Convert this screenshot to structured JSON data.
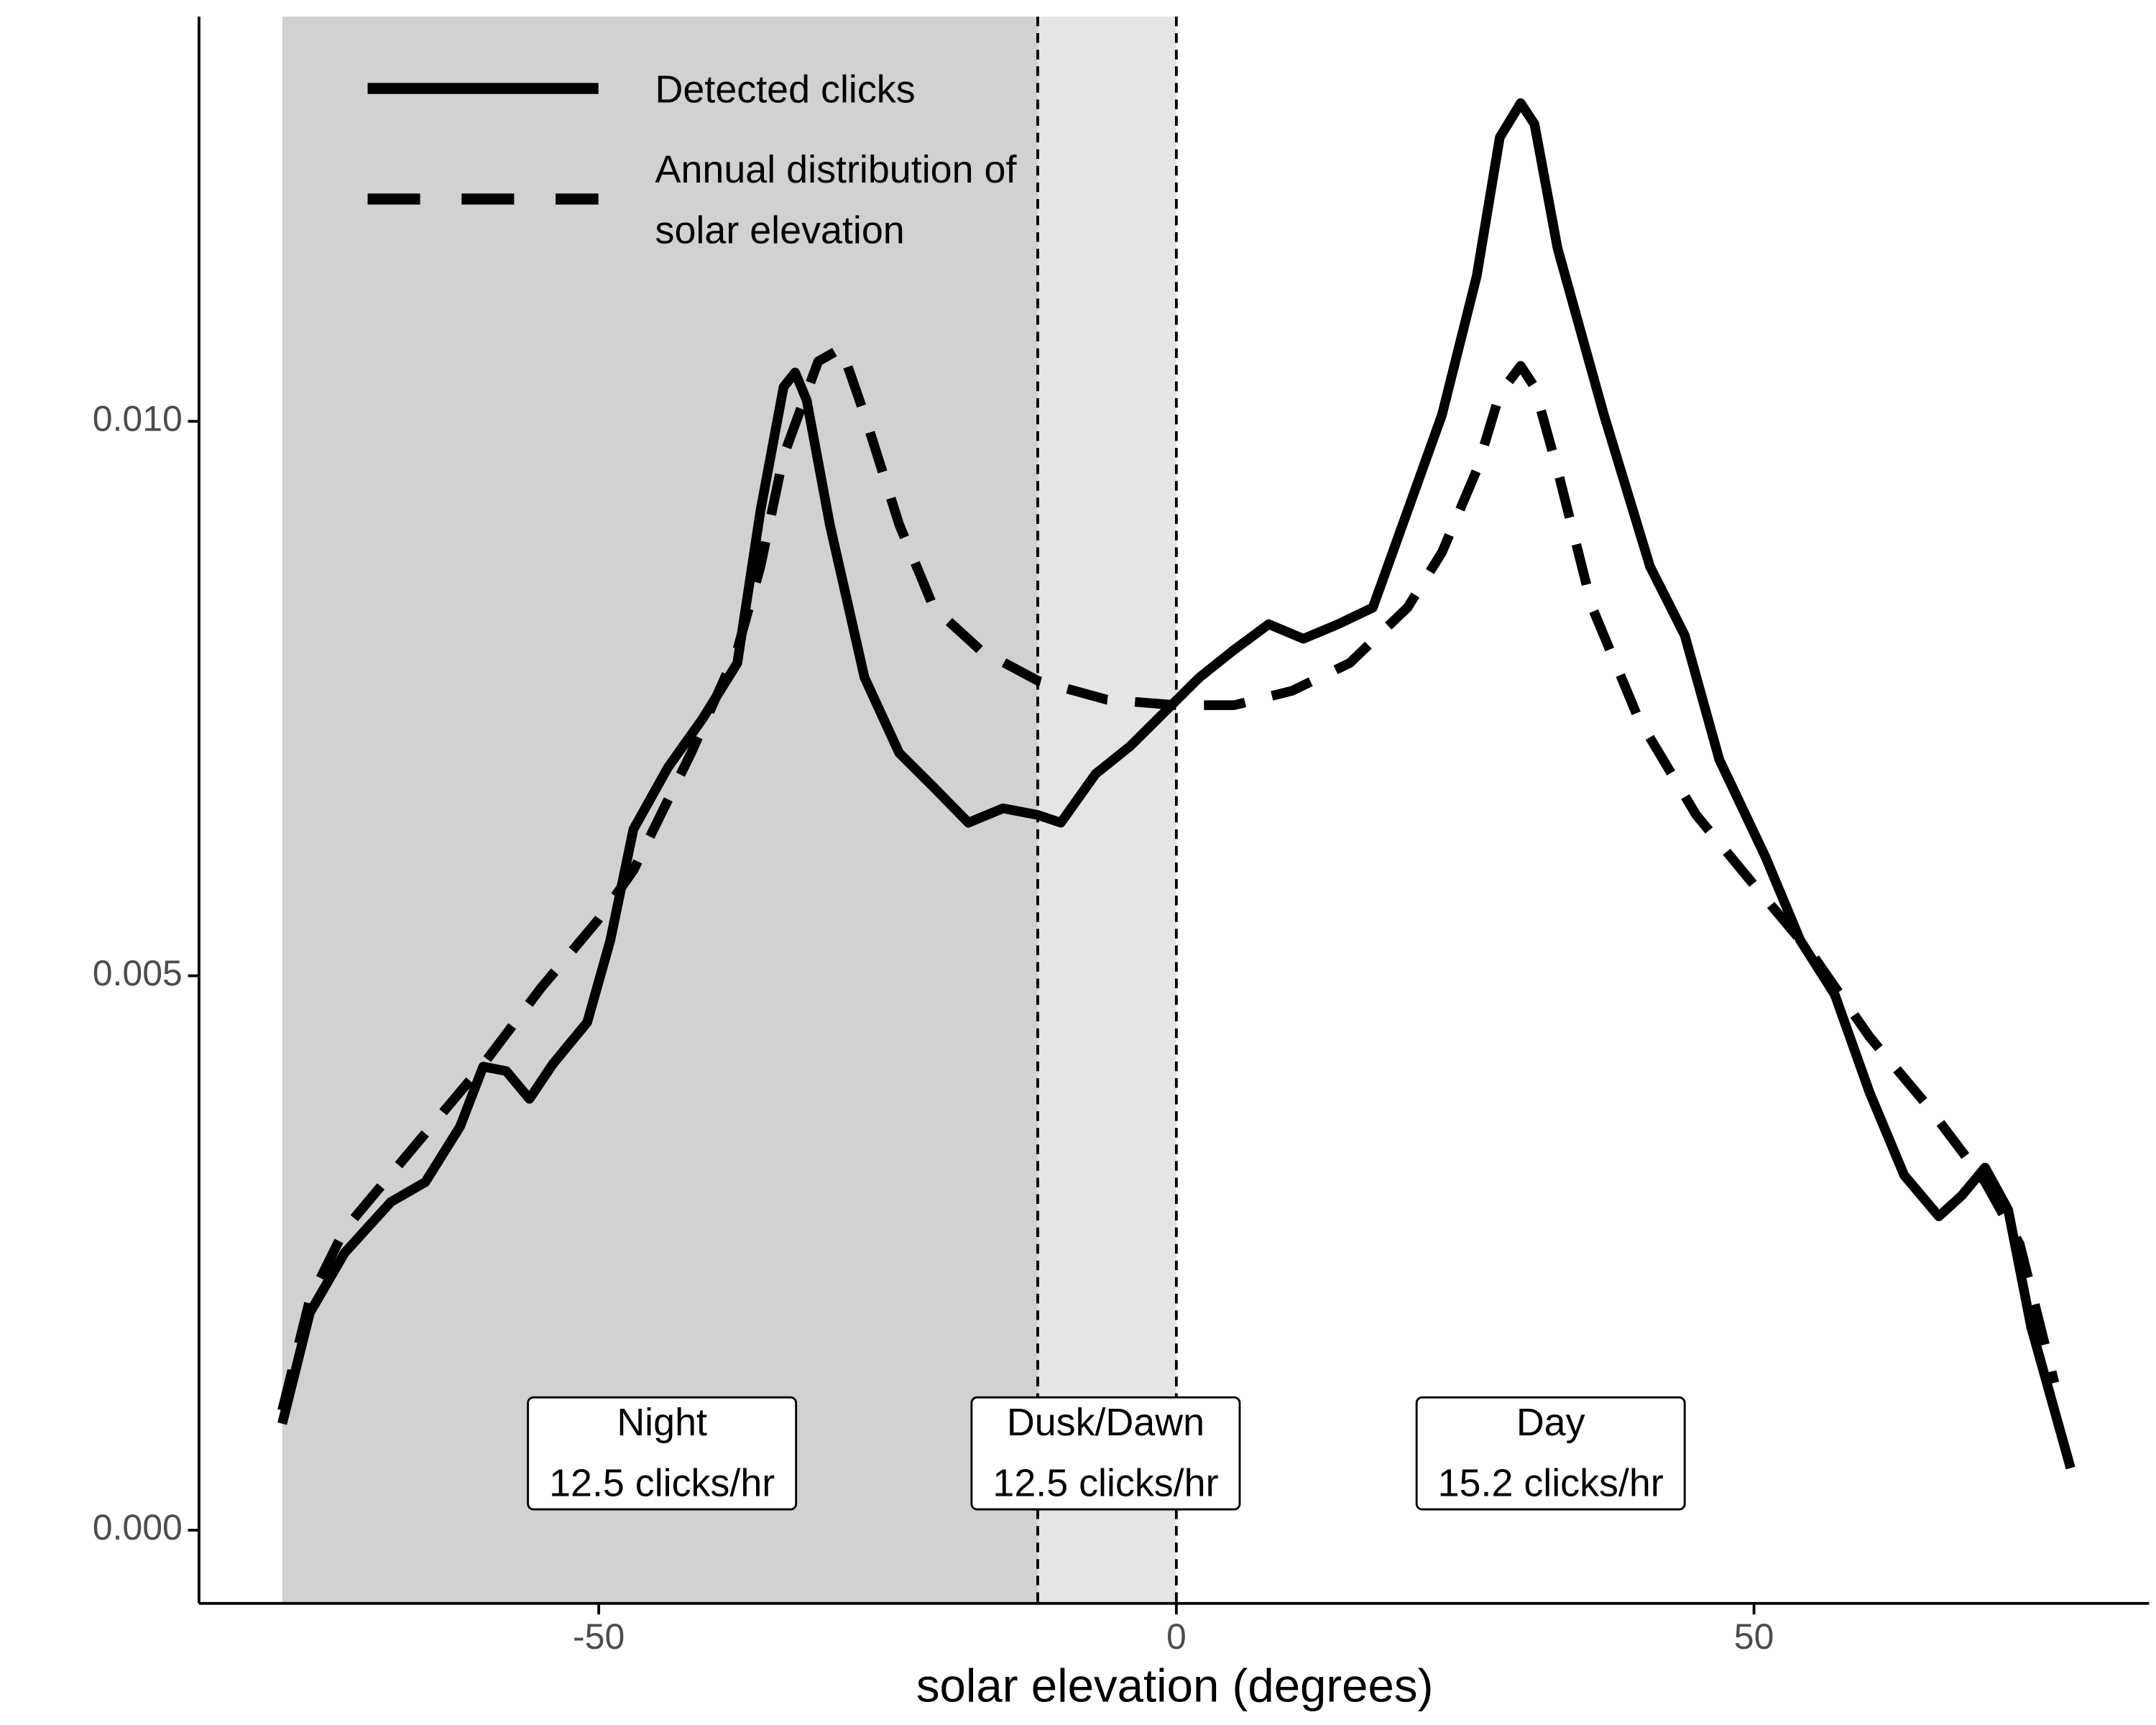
{
  "chart_data": {
    "type": "line",
    "x_label": "solar elevation (degrees)",
    "xlim": [
      -84.6,
      84.2
    ],
    "ylim": [
      -0.00066,
      0.01365
    ],
    "xticks": [
      -50,
      0,
      50
    ],
    "yticks": [
      {
        "value": 0,
        "label": "0.000"
      },
      {
        "value": 0.005,
        "label": "0.005"
      },
      {
        "value": 0.01,
        "label": "0.010"
      }
    ],
    "shaded_regions": [
      {
        "range": [
          -77.4,
          -12
        ],
        "color": "#d1d1d1"
      },
      {
        "range": [
          -12,
          0
        ],
        "color": "#e5e5e5"
      }
    ],
    "vlines": [
      -12,
      0
    ],
    "series": [
      {
        "name": "Detected clicks",
        "color": "#000000",
        "dash": false,
        "x": [
          -77.4,
          -75,
          -72,
          -68,
          -65,
          -62,
          -60,
          -58,
          -56,
          -54,
          -51,
          -49,
          -47,
          -44,
          -41,
          -38,
          -36,
          -34,
          -33,
          -32,
          -30,
          -27,
          -24,
          -21,
          -18,
          -15,
          -12,
          -10,
          -7,
          -4,
          -1,
          2,
          5,
          8,
          11,
          14,
          17,
          20,
          23,
          26,
          28,
          29.8,
          31,
          33,
          37,
          41,
          44,
          47,
          51,
          54,
          57,
          60,
          63,
          66,
          68,
          70,
          72,
          74,
          77.4
        ],
        "values": [
          0.00096,
          0.00196,
          0.0025,
          0.00296,
          0.00314,
          0.00364,
          0.00418,
          0.00414,
          0.00389,
          0.0042,
          0.00458,
          0.00532,
          0.00632,
          0.00688,
          0.00732,
          0.00782,
          0.00919,
          0.01031,
          0.01044,
          0.01019,
          0.00907,
          0.00769,
          0.00701,
          0.0067,
          0.00638,
          0.00651,
          0.00645,
          0.00638,
          0.00682,
          0.00707,
          0.00738,
          0.00769,
          0.00794,
          0.00817,
          0.00804,
          0.00817,
          0.00832,
          0.00919,
          0.01006,
          0.01131,
          0.01256,
          0.01287,
          0.01268,
          0.01156,
          0.01006,
          0.00869,
          0.00807,
          0.00695,
          0.00607,
          0.00532,
          0.00483,
          0.00395,
          0.0032,
          0.00283,
          0.00302,
          0.00327,
          0.00289,
          0.00183,
          0.00056
        ]
      },
      {
        "name": "Annual distribution of solar elevation",
        "color": "#000000",
        "dash": true,
        "x": [
          -77.4,
          -75,
          -72,
          -65,
          -60,
          -55,
          -50,
          -47,
          -42,
          -38,
          -36,
          -34,
          -31,
          -29,
          -27,
          -24,
          -21,
          -17,
          -12,
          -6,
          0,
          5,
          10,
          15,
          20,
          23,
          26,
          28,
          29.8,
          31,
          33,
          36,
          40,
          45,
          50,
          55,
          60,
          65,
          70,
          73,
          76
        ],
        "values": [
          0.00108,
          0.00208,
          0.00271,
          0.00358,
          0.0042,
          0.00489,
          0.00551,
          0.00595,
          0.00701,
          0.00794,
          0.00869,
          0.00969,
          0.01054,
          0.01066,
          0.01006,
          0.00907,
          0.00832,
          0.00794,
          0.00766,
          0.00749,
          0.00744,
          0.00744,
          0.00757,
          0.00782,
          0.00832,
          0.00882,
          0.00956,
          0.01025,
          0.0105,
          0.01031,
          0.00956,
          0.00832,
          0.00732,
          0.00645,
          0.00582,
          0.0052,
          0.00445,
          0.00383,
          0.00314,
          0.00258,
          0.00133
        ]
      }
    ],
    "annotations": [
      {
        "lines": [
          "Night",
          "12.5 clicks/hr"
        ]
      },
      {
        "lines": [
          "Dusk/Dawn",
          "12.5 clicks/hr"
        ]
      },
      {
        "lines": [
          "Day",
          "15.2 clicks/hr"
        ]
      }
    ]
  }
}
